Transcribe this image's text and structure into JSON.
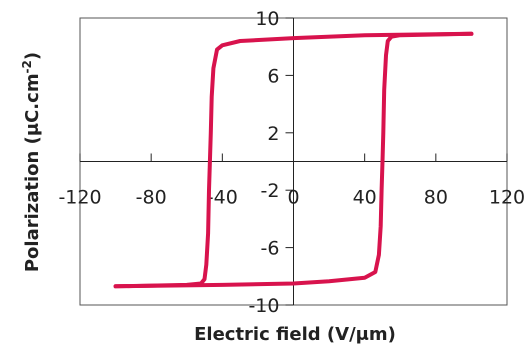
{
  "chart_data": {
    "type": "line",
    "title": "",
    "xlabel": "Electric field (V/μm)",
    "ylabel_main": "Polarization (μC.cm",
    "ylabel_sup": "-2",
    "ylabel_close": ")",
    "xlim": [
      -120,
      120
    ],
    "ylim": [
      -10,
      10
    ],
    "x_ticks": [
      -120,
      -80,
      -40,
      0,
      40,
      80,
      120
    ],
    "x_tick_labels": [
      "-120",
      "-80",
      "-40",
      "0",
      "40",
      "80",
      "120"
    ],
    "y_ticks": [
      10,
      6,
      2,
      -2,
      -6,
      -10
    ],
    "y_tick_labels": [
      "10",
      "6",
      "2",
      "-2",
      "-6",
      "-10"
    ],
    "grid": false,
    "series": [
      {
        "color": "#d8134d",
        "x": [
          -100,
          -80,
          -60,
          -52,
          -50,
          -49,
          -48,
          -47.5,
          -47,
          -46.5,
          -46,
          -45,
          -43,
          -40,
          -30,
          0,
          40,
          100
        ],
        "y": [
          -8.7,
          -8.65,
          -8.6,
          -8.5,
          -8.2,
          -7.2,
          -5,
          -2,
          0,
          2,
          4.5,
          6.5,
          7.8,
          8.1,
          8.4,
          8.6,
          8.8,
          8.9
        ]
      },
      {
        "color": "#d8134d",
        "x": [
          100,
          80,
          60,
          55,
          53,
          52,
          51,
          50.5,
          50,
          49.5,
          49,
          48,
          46,
          40,
          20,
          0,
          -40,
          -100
        ],
        "y": [
          8.9,
          8.85,
          8.8,
          8.7,
          8.4,
          7.4,
          5,
          2,
          0,
          -2,
          -4.5,
          -6.5,
          -7.7,
          -8.1,
          -8.35,
          -8.5,
          -8.6,
          -8.7
        ]
      }
    ]
  }
}
